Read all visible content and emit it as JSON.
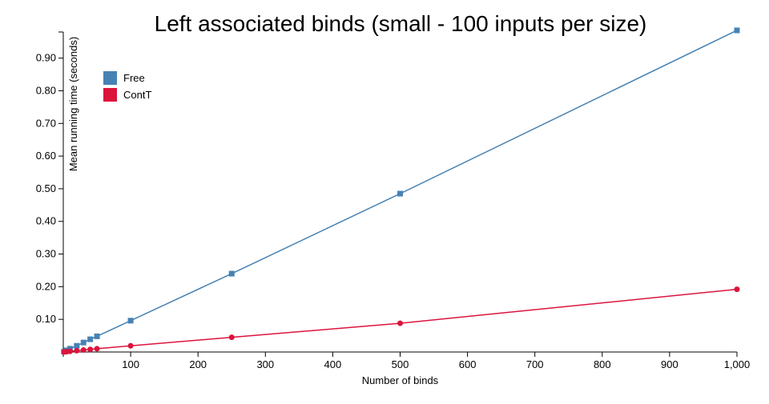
{
  "chart_data": {
    "type": "line",
    "title": "Left associated binds (small - 100 inputs per size)",
    "xlabel": "Number of binds",
    "ylabel": "Mean running time (seconds)",
    "xlim": [
      0,
      1000
    ],
    "ylim": [
      0,
      0.98
    ],
    "xticks": [
      100,
      200,
      300,
      400,
      500,
      600,
      700,
      800,
      900,
      1000
    ],
    "xtick_labels": [
      "100",
      "200",
      "300",
      "400",
      "500",
      "600",
      "700",
      "800",
      "900",
      "1,000"
    ],
    "yticks": [
      0.1,
      0.2,
      0.3,
      0.4,
      0.5,
      0.6,
      0.7,
      0.8,
      0.9
    ],
    "ytick_labels": [
      "0.10",
      "0.20",
      "0.30",
      "0.40",
      "0.50",
      "0.60",
      "0.70",
      "0.80",
      "0.90"
    ],
    "grid": false,
    "legend_position": "top-left",
    "series": [
      {
        "name": "Free",
        "color": "#4682b4",
        "marker": "square",
        "x": [
          1,
          5,
          10,
          20,
          30,
          40,
          50,
          100,
          250,
          500,
          1000
        ],
        "y": [
          0.001,
          0.005,
          0.01,
          0.019,
          0.029,
          0.039,
          0.048,
          0.096,
          0.24,
          0.485,
          0.985
        ]
      },
      {
        "name": "ContT",
        "color": "#dc143c",
        "marker": "circle",
        "x": [
          1,
          5,
          10,
          20,
          30,
          40,
          50,
          100,
          250,
          500,
          1000
        ],
        "y": [
          0.0002,
          0.001,
          0.002,
          0.004,
          0.006,
          0.008,
          0.01,
          0.019,
          0.045,
          0.088,
          0.192
        ]
      }
    ]
  }
}
